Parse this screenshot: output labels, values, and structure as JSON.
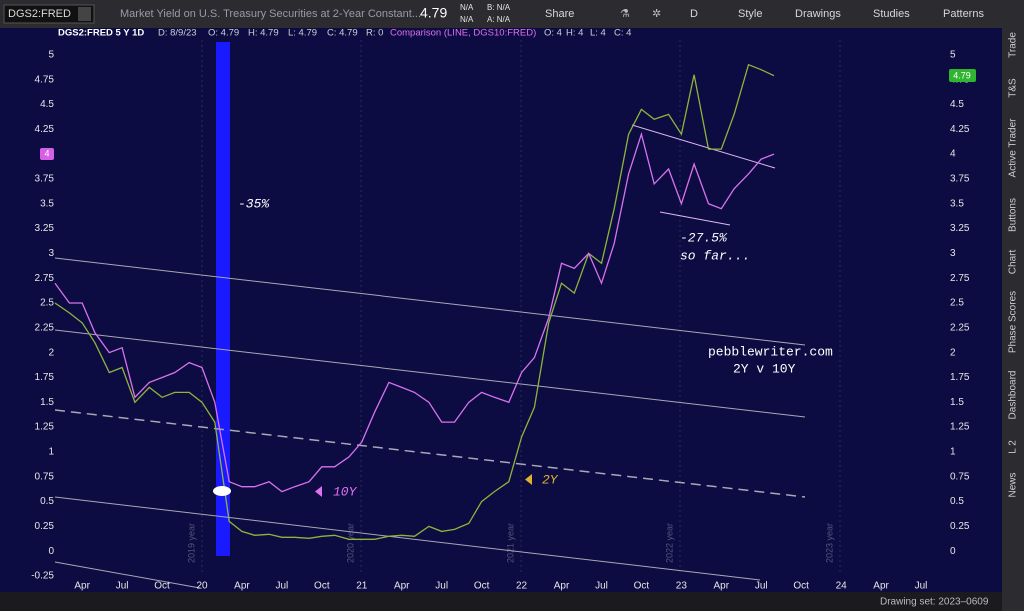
{
  "toolbar": {
    "symbol": "DGS2:FRED",
    "description": "Market Yield on U.S. Treasury Securities at 2-Year Constant...",
    "last": "4.79",
    "change": "N/A",
    "change_pct": "N/A",
    "bid": "B: N/A",
    "ask": "A: N/A",
    "buttons": [
      "Share",
      "D",
      "Style",
      "Drawings",
      "Studies",
      "Patterns"
    ]
  },
  "side_tabs": [
    "Trade",
    "T&S",
    "Active Trader",
    "Buttons",
    "Chart",
    "Phase Scores",
    "Dashboard",
    "L 2",
    "News"
  ],
  "footer": {
    "drawing_set": "Drawing set: 2023–0609"
  },
  "chart_data": {
    "type": "line",
    "header": {
      "symbol": "DGS2:FRED 5 Y 1D",
      "date": "D: 8/9/23",
      "open": "O: 4.79",
      "high": "H: 4.79",
      "low": "L: 4.79",
      "close": "C: 4.79",
      "range": "R: 0",
      "comparison": "Comparison (LINE, DGS10:FRED)",
      "cmp_open": "O: 4",
      "cmp_high": "H: 4",
      "cmp_low": "L: 4",
      "cmp_close": "C: 4"
    },
    "last_badge": "4.79",
    "compare_badge": "4",
    "annotations": {
      "drop_2020": "-35%",
      "drop_2023": "-27.5%",
      "drop_2023_note": "so far...",
      "site": "pebblewriter.com",
      "subtitle": "2Y v 10Y",
      "label_10y": "10Y",
      "label_2y": "2Y"
    },
    "year_labels": [
      "2019 year",
      "2020 year",
      "2021 year",
      "2022 year",
      "2023 year"
    ],
    "x": [
      2019.08,
      2019.17,
      2019.25,
      2019.33,
      2019.42,
      2019.5,
      2019.58,
      2019.67,
      2019.75,
      2019.83,
      2019.92,
      2020.0,
      2020.08,
      2020.17,
      2020.25,
      2020.33,
      2020.42,
      2020.5,
      2020.58,
      2020.67,
      2020.75,
      2020.83,
      2020.92,
      2021.0,
      2021.08,
      2021.17,
      2021.25,
      2021.33,
      2021.42,
      2021.5,
      2021.58,
      2021.67,
      2021.75,
      2021.83,
      2021.92,
      2022.0,
      2022.08,
      2022.17,
      2022.25,
      2022.33,
      2022.42,
      2022.5,
      2022.58,
      2022.67,
      2022.75,
      2022.83,
      2022.92,
      2023.0,
      2023.08,
      2023.17,
      2023.25,
      2023.33,
      2023.42,
      2023.5,
      2023.58
    ],
    "series": [
      {
        "name": "2Y",
        "color": "#8fb43a",
        "values": [
          2.5,
          2.4,
          2.3,
          2.1,
          1.8,
          1.85,
          1.5,
          1.65,
          1.55,
          1.6,
          1.6,
          1.5,
          1.3,
          0.3,
          0.2,
          0.16,
          0.17,
          0.14,
          0.14,
          0.13,
          0.15,
          0.16,
          0.12,
          0.12,
          0.12,
          0.15,
          0.16,
          0.15,
          0.25,
          0.2,
          0.22,
          0.28,
          0.5,
          0.6,
          0.7,
          1.15,
          1.45,
          2.3,
          2.7,
          2.6,
          3.0,
          2.9,
          3.45,
          4.2,
          4.45,
          4.35,
          4.4,
          4.2,
          4.8,
          4.05,
          4.05,
          4.4,
          4.9,
          4.85,
          4.79
        ]
      },
      {
        "name": "10Y",
        "color": "#d872ee",
        "values": [
          2.7,
          2.5,
          2.5,
          2.2,
          2.0,
          2.05,
          1.55,
          1.7,
          1.75,
          1.8,
          1.9,
          1.85,
          1.5,
          0.7,
          0.65,
          0.65,
          0.7,
          0.6,
          0.65,
          0.7,
          0.85,
          0.85,
          0.95,
          1.1,
          1.4,
          1.7,
          1.65,
          1.6,
          1.5,
          1.3,
          1.3,
          1.5,
          1.6,
          1.55,
          1.5,
          1.8,
          1.95,
          2.35,
          2.9,
          2.85,
          3.0,
          2.7,
          3.1,
          3.8,
          4.2,
          3.7,
          3.85,
          3.5,
          3.9,
          3.5,
          3.45,
          3.65,
          3.8,
          3.95,
          4.0
        ]
      }
    ],
    "xlim": [
      2019.08,
      2024.65
    ],
    "xticks": [
      {
        "value": 2019.25,
        "label": "Apr"
      },
      {
        "value": 2019.5,
        "label": "Jul"
      },
      {
        "value": 2019.75,
        "label": "Oct"
      },
      {
        "value": 2020.0,
        "label": "20"
      },
      {
        "value": 2020.25,
        "label": "Apr"
      },
      {
        "value": 2020.5,
        "label": "Jul"
      },
      {
        "value": 2020.75,
        "label": "Oct"
      },
      {
        "value": 2021.0,
        "label": "21"
      },
      {
        "value": 2021.25,
        "label": "Apr"
      },
      {
        "value": 2021.5,
        "label": "Jul"
      },
      {
        "value": 2021.75,
        "label": "Oct"
      },
      {
        "value": 2022.0,
        "label": "22"
      },
      {
        "value": 2022.25,
        "label": "Apr"
      },
      {
        "value": 2022.5,
        "label": "Jul"
      },
      {
        "value": 2022.75,
        "label": "Oct"
      },
      {
        "value": 2023.0,
        "label": "23"
      },
      {
        "value": 2023.25,
        "label": "Apr"
      },
      {
        "value": 2023.5,
        "label": "Jul"
      },
      {
        "value": 2023.75,
        "label": "Oct"
      },
      {
        "value": 2024.0,
        "label": "24"
      },
      {
        "value": 2024.25,
        "label": "Apr"
      },
      {
        "value": 2024.5,
        "label": "Jul"
      }
    ],
    "ylim": [
      -0.29,
      5.27
    ],
    "yticks": [
      -0.25,
      0,
      0.25,
      0.5,
      0.75,
      1,
      1.25,
      1.5,
      1.75,
      2,
      2.25,
      2.5,
      2.75,
      3,
      3.25,
      3.5,
      3.75,
      4,
      4.25,
      4.5,
      4.75,
      5
    ],
    "y2lim": [
      -0.29,
      5.27
    ],
    "y2ticks": [
      0,
      0.25,
      0.5,
      0.75,
      1,
      1.25,
      1.5,
      1.75,
      2,
      2.25,
      2.5,
      2.75,
      3,
      3.25,
      3.5,
      3.75,
      4,
      4.25,
      4.5,
      4.75,
      5
    ],
    "grid": false
  }
}
